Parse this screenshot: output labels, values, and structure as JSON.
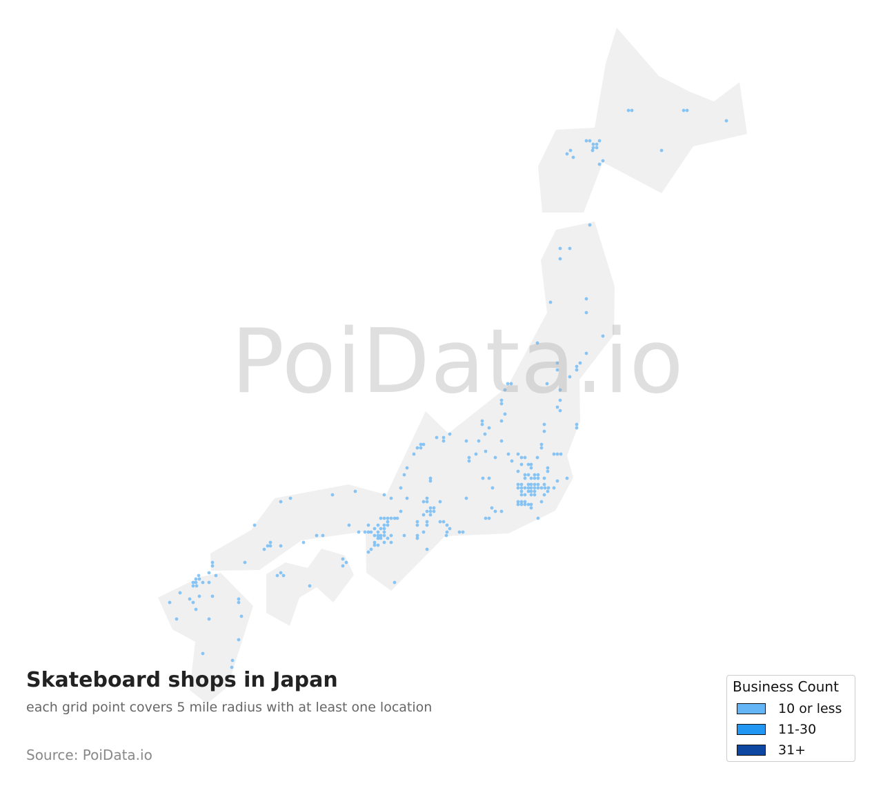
{
  "title": "Skateboard shops in Japan",
  "subtitle": "each grid point covers 5 mile radius with at least one location",
  "source": "Source: PoiData.io",
  "watermark": "PoiData.io",
  "map": {
    "land_color": "#f0f0f0",
    "point_color": "#64b5f6"
  },
  "legend": {
    "title": "Business Count",
    "items": [
      {
        "label": "10 or less",
        "color": "#64b5f6"
      },
      {
        "label": "11-30",
        "color": "#2196f3"
      },
      {
        "label": "31+",
        "color": "#0d47a1"
      }
    ]
  }
}
